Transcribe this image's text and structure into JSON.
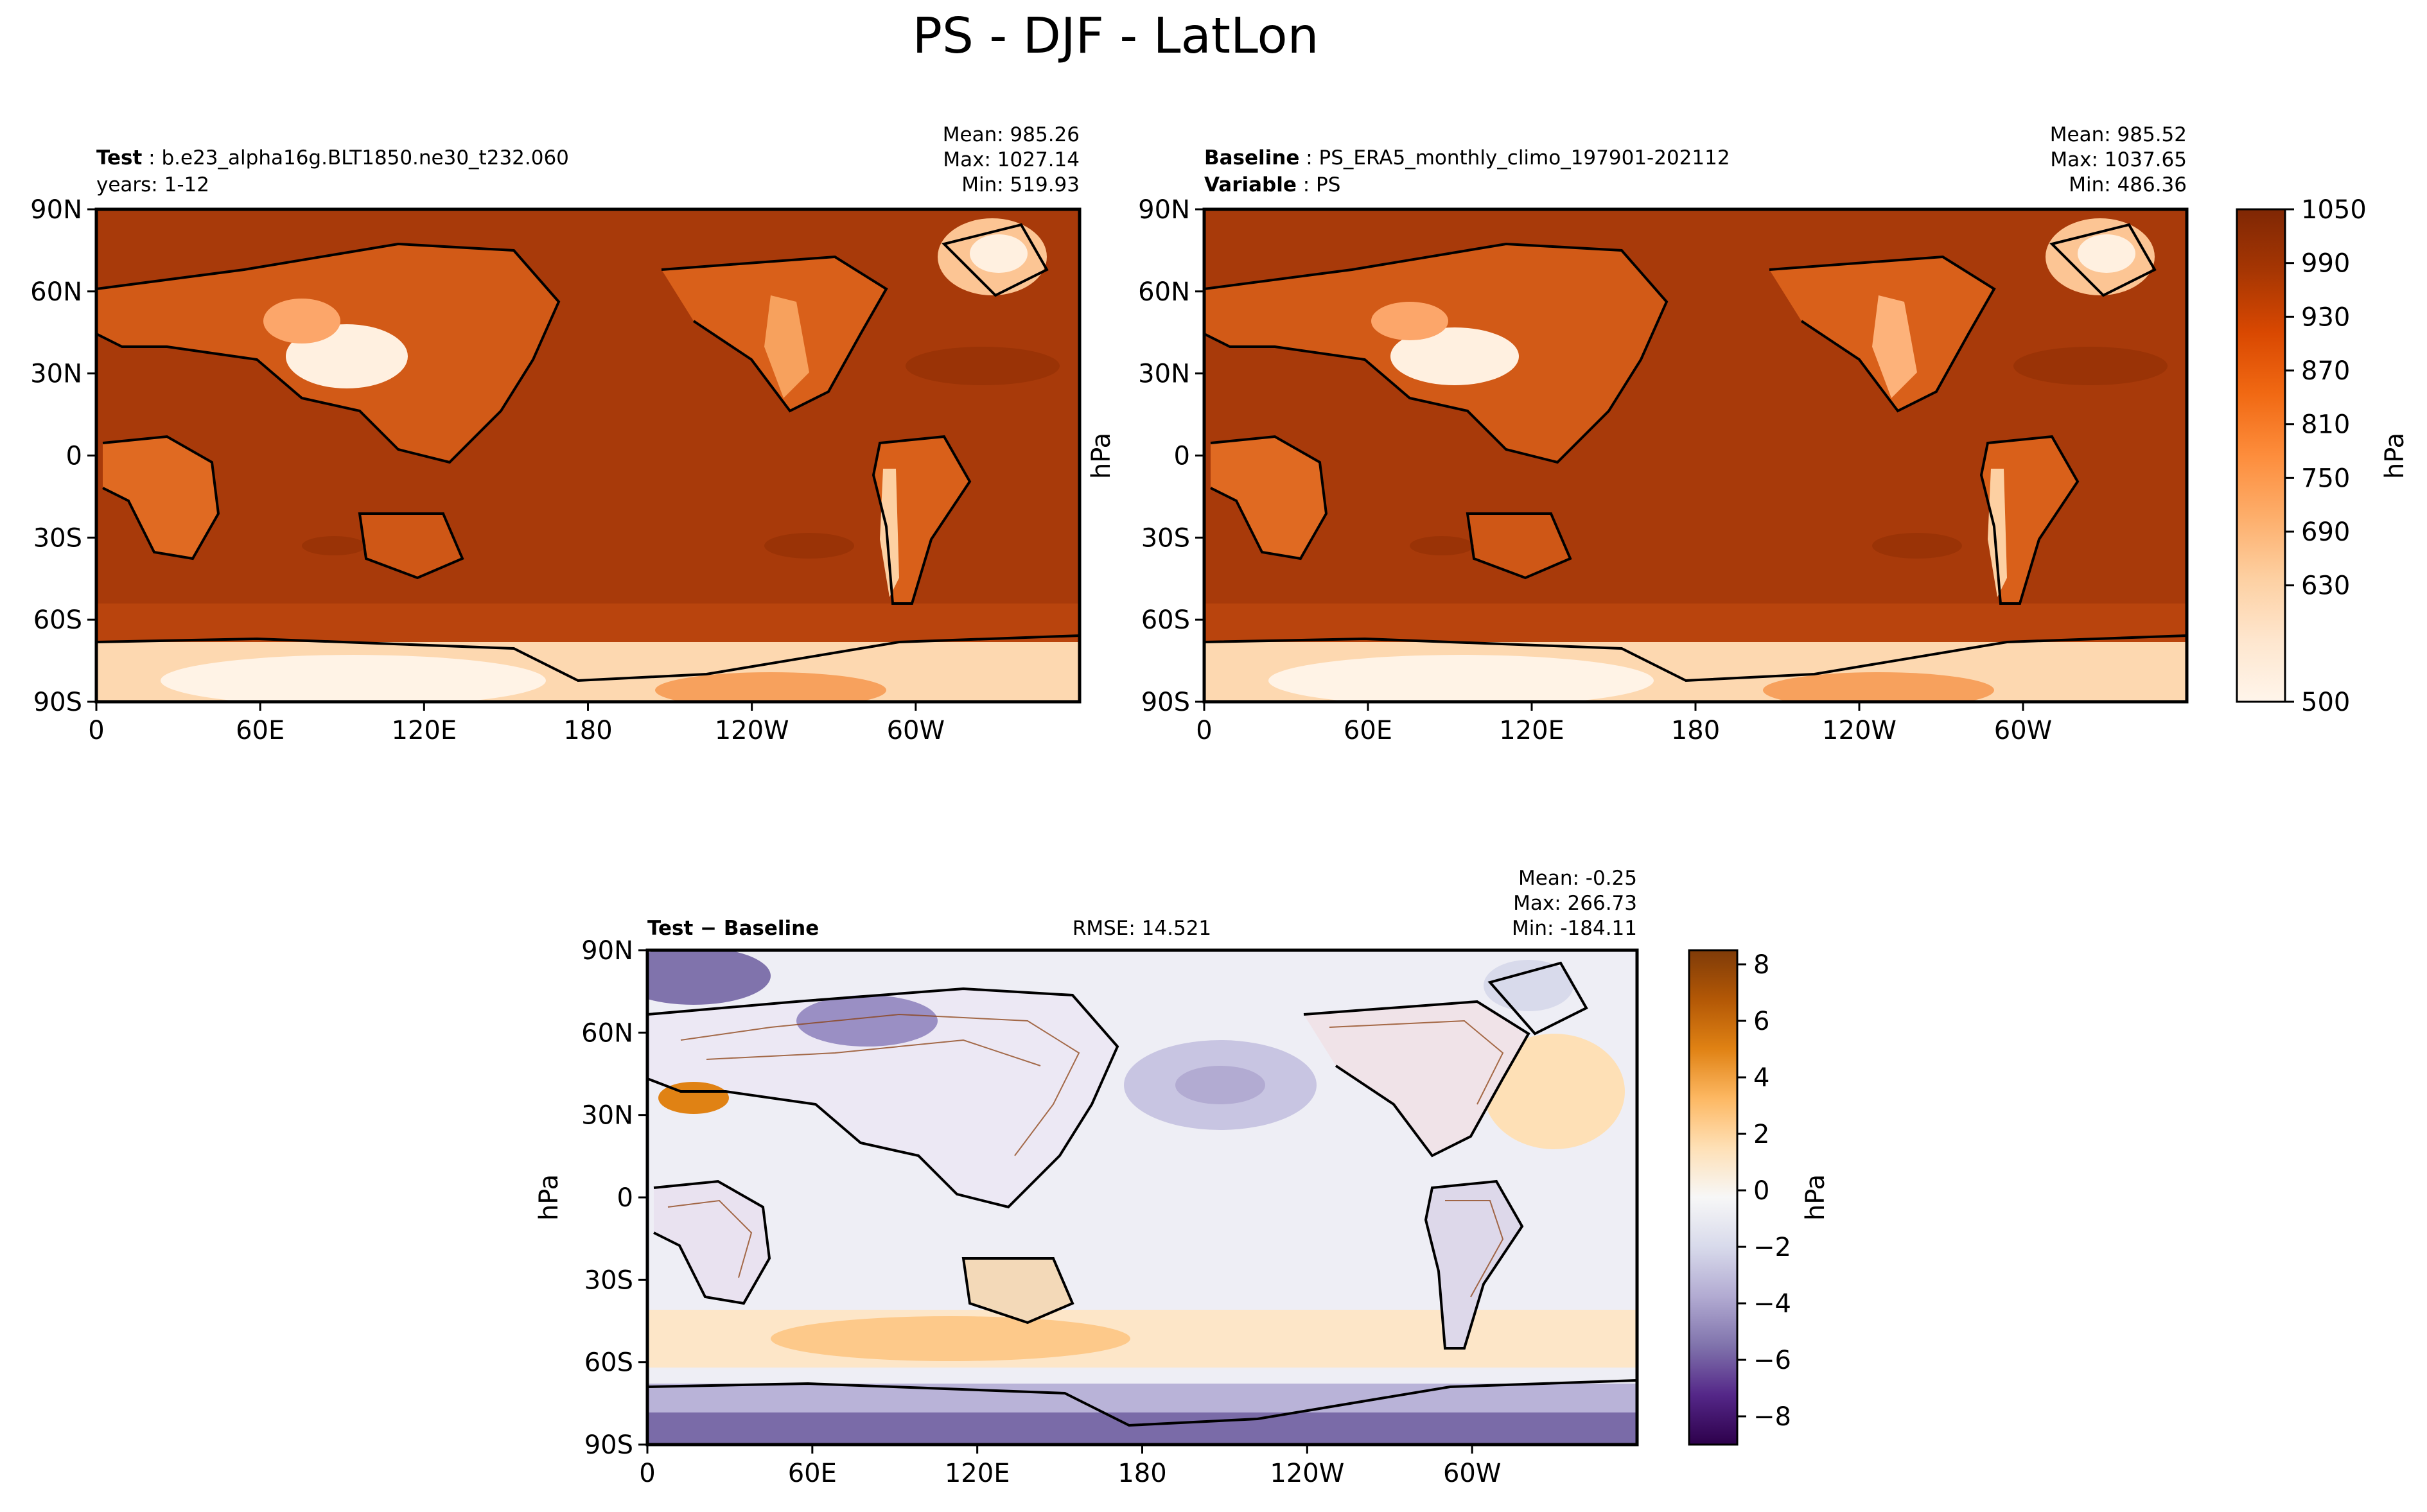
{
  "figure": {
    "title": "PS - DJF - LatLon"
  },
  "palettes": {
    "oranges": [
      "#fff5eb",
      "#fee6ce",
      "#fdd0a2",
      "#fdae6b",
      "#fd8d3c",
      "#f16913",
      "#d94801",
      "#a63603",
      "#7f2704"
    ],
    "diverging": [
      "#2d004b",
      "#542788",
      "#8073ac",
      "#b2abd2",
      "#d8daeb",
      "#f7f7f7",
      "#fee0b6",
      "#fdb863",
      "#e08214",
      "#b35806",
      "#7f3b08"
    ],
    "ocean_test": "#a83a0a",
    "ocean_diff": "#eeeef5"
  },
  "panels": {
    "test": {
      "label_key": "Test",
      "label_value": "b.e23_alpha16g.BLT1850.ne30_t232.060",
      "subline": "years: 1-12",
      "stats": [
        "Mean: 985.26",
        "Max: 1027.14",
        "Min: 519.93"
      ]
    },
    "baseline": {
      "label_key": "Baseline",
      "label_value": "PS_ERA5_monthly_climo_197901-202112",
      "var_key": "Variable",
      "var_value": "PS",
      "stats": [
        "Mean: 985.52",
        "Max: 1037.65",
        "Min: 486.36"
      ],
      "ylabel": "hPa"
    },
    "diff": {
      "label": "Test − Baseline",
      "rmse": "RMSE: 14.521",
      "stats": [
        "Mean: -0.25",
        "Max: 266.73",
        "Min: -184.11"
      ],
      "ylabel": "hPa"
    }
  },
  "chart_data": [
    {
      "type": "heatmap",
      "panel": "test",
      "x_ticks": [
        "0",
        "60E",
        "120E",
        "180",
        "120W",
        "60W"
      ],
      "y_ticks": [
        "90N",
        "60N",
        "30N",
        "0",
        "30S",
        "60S",
        "90S"
      ],
      "xlim": [
        0,
        360
      ],
      "ylim": [
        -90,
        90
      ]
    },
    {
      "type": "heatmap",
      "panel": "baseline",
      "x_ticks": [
        "0",
        "60E",
        "120E",
        "180",
        "120W",
        "60W"
      ],
      "y_ticks": [
        "90N",
        "60N",
        "30N",
        "0",
        "30S",
        "60S",
        "90S"
      ],
      "xlim": [
        0,
        360
      ],
      "ylim": [
        -90,
        90
      ]
    },
    {
      "type": "heatmap",
      "panel": "diff",
      "x_ticks": [
        "0",
        "60E",
        "120E",
        "180",
        "120W",
        "60W"
      ],
      "y_ticks": [
        "90N",
        "60N",
        "30N",
        "0",
        "30S",
        "60S",
        "90S"
      ],
      "xlim": [
        0,
        360
      ],
      "ylim": [
        -90,
        90
      ]
    }
  ],
  "colorbars": {
    "main": {
      "label": "hPa",
      "min": 500,
      "max": 1050,
      "ticks": [
        "500",
        "630",
        "690",
        "750",
        "810",
        "870",
        "930",
        "990",
        "1050"
      ]
    },
    "diff": {
      "label": "hPa",
      "min": -9,
      "max": 8.5,
      "ticks": [
        "−8",
        "−6",
        "−4",
        "−2",
        "0",
        "2",
        "4",
        "6",
        "8"
      ]
    }
  }
}
